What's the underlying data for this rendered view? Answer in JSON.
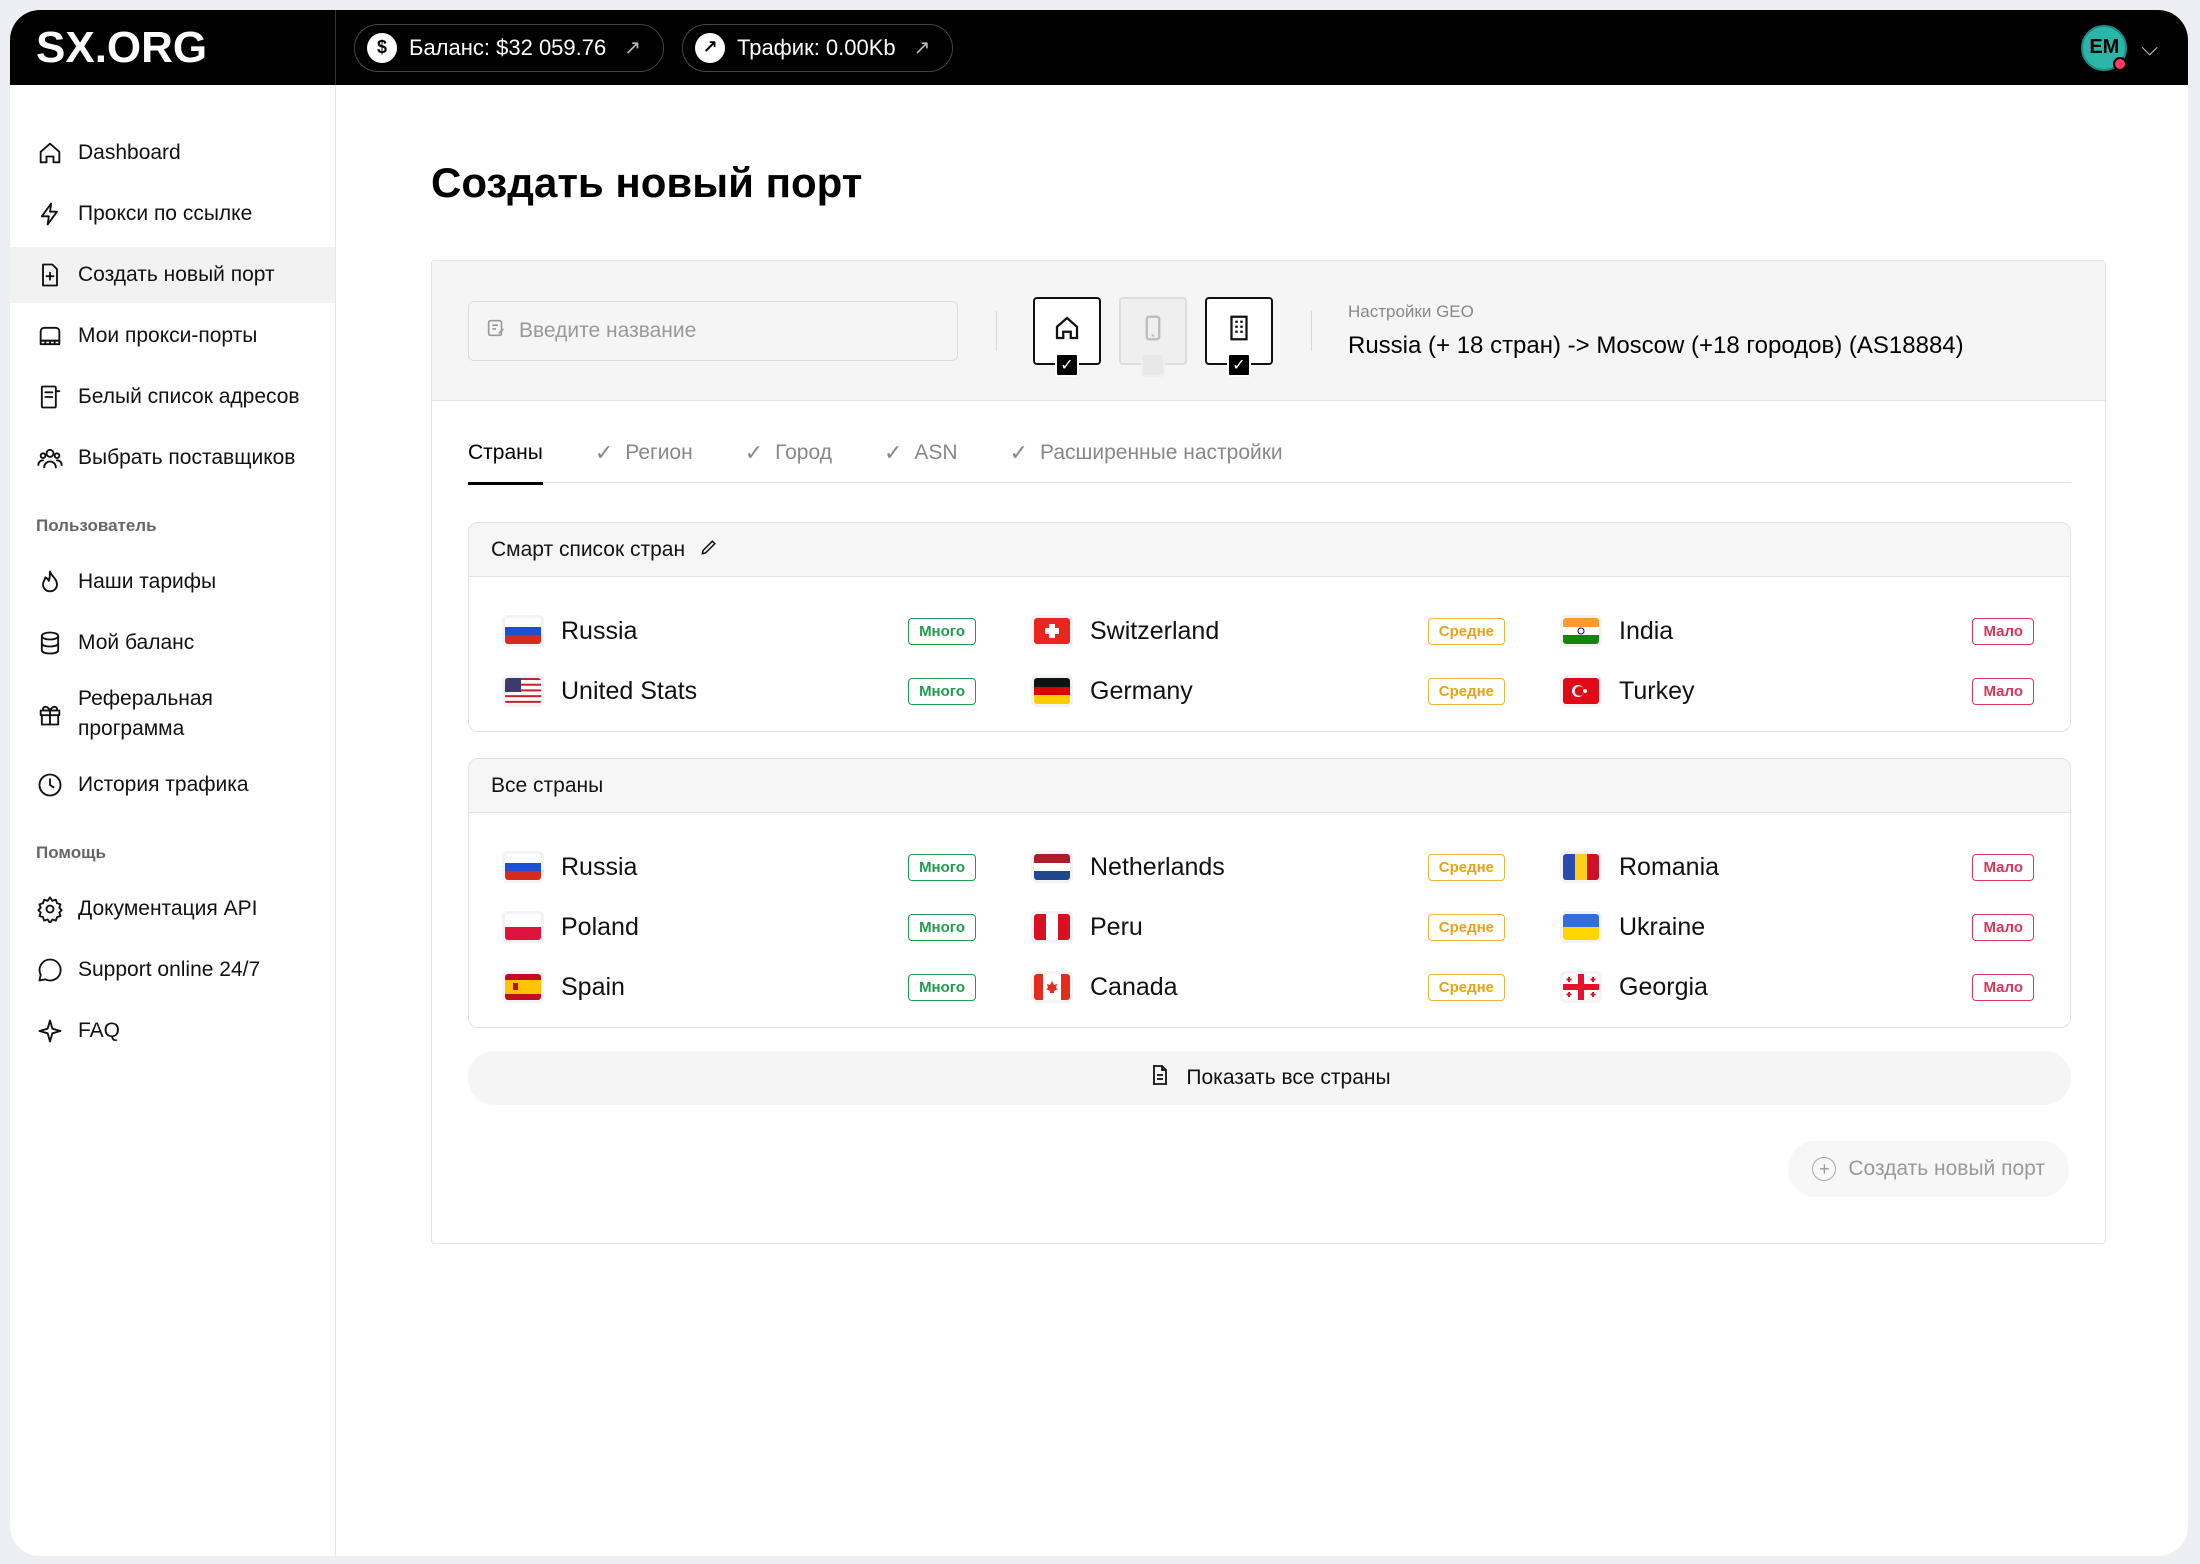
{
  "brand": {
    "logo": "SX.ORG"
  },
  "header": {
    "balance_label": "Баланс: $32 059.76",
    "traffic_label": "Трафик: 0.00Kb",
    "avatar_initials": "EM"
  },
  "sidebar": {
    "items": [
      {
        "label": "Dashboard",
        "icon": "home-icon"
      },
      {
        "label": "Прокси по ссылке",
        "icon": "lightning-icon"
      },
      {
        "label": "Создать новый порт",
        "icon": "file-plus-icon",
        "active": true
      },
      {
        "label": "Мои прокси-порты",
        "icon": "ports-icon"
      },
      {
        "label": "Белый список адресов",
        "icon": "list-icon"
      },
      {
        "label": "Выбрать поставщиков",
        "icon": "users-icon"
      }
    ],
    "user_section": "Пользователь",
    "user_items": [
      {
        "label": "Наши тарифы",
        "icon": "fire-icon"
      },
      {
        "label": "Мой баланс",
        "icon": "database-icon"
      },
      {
        "label": "Реферальная программа",
        "icon": "gift-icon"
      },
      {
        "label": "История трафика",
        "icon": "clock-icon"
      }
    ],
    "help_section": "Помощь",
    "help_items": [
      {
        "label": "Документация API",
        "icon": "gear-icon"
      },
      {
        "label": "Support online 24/7",
        "icon": "chat-icon"
      },
      {
        "label": "FAQ",
        "icon": "sparkle-icon"
      }
    ]
  },
  "main": {
    "title": "Создать новый порт",
    "name_placeholder": "Введите название",
    "geo_label": "Настройки GEO",
    "geo_value": "Russia (+ 18 стран) -> Moscow (+18 городов) (AS18884)",
    "tabs": [
      "Страны",
      "Регион",
      "Город",
      "ASN",
      "Расширенные настройки"
    ],
    "smart_title": "Смарт список стран",
    "all_title": "Все страны",
    "show_all_label": "Показать все страны",
    "create_label": "Создать новый порт",
    "badges": {
      "many": "Много",
      "mid": "Средне",
      "few": "Мало"
    },
    "smart_countries": [
      {
        "name": "Russia",
        "level": "many",
        "flag": "ru"
      },
      {
        "name": "Switzerland",
        "level": "mid",
        "flag": "ch"
      },
      {
        "name": "India",
        "level": "few",
        "flag": "in"
      },
      {
        "name": "United Stats",
        "level": "many",
        "flag": "us"
      },
      {
        "name": "Germany",
        "level": "mid",
        "flag": "de"
      },
      {
        "name": "Turkey",
        "level": "few",
        "flag": "tr"
      }
    ],
    "all_countries": [
      {
        "name": "Russia",
        "level": "many",
        "flag": "ru"
      },
      {
        "name": "Netherlands",
        "level": "mid",
        "flag": "nl"
      },
      {
        "name": "Romania",
        "level": "few",
        "flag": "ro"
      },
      {
        "name": "Poland",
        "level": "many",
        "flag": "pl"
      },
      {
        "name": "Peru",
        "level": "mid",
        "flag": "pe"
      },
      {
        "name": "Ukraine",
        "level": "few",
        "flag": "ua"
      },
      {
        "name": "Spain",
        "level": "many",
        "flag": "es"
      },
      {
        "name": "Canada",
        "level": "mid",
        "flag": "ca"
      },
      {
        "name": "Georgia",
        "level": "few",
        "flag": "ge"
      }
    ]
  }
}
